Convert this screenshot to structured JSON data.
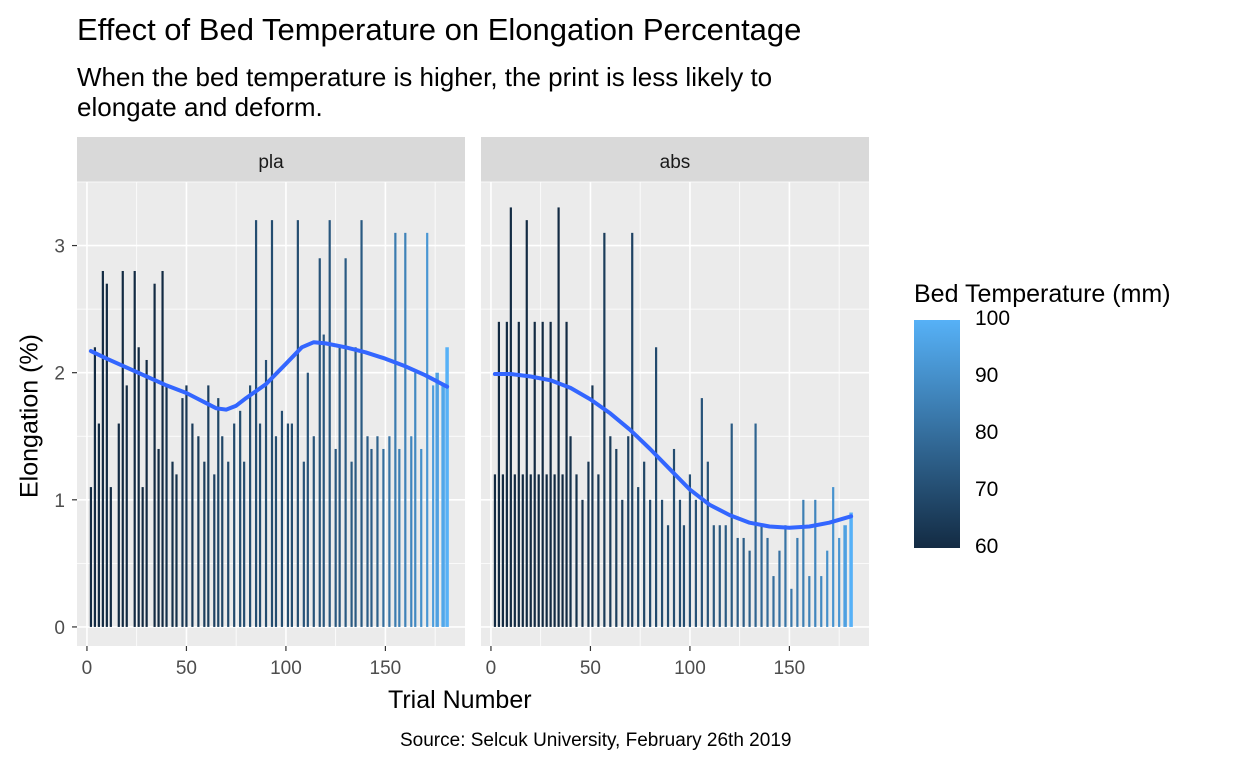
{
  "chart_data": {
    "type": "bar",
    "title": "Effect of Bed Temperature on Elongation Percentage",
    "subtitle": "When the bed temperature is higher, the print is less likely to elongate and deform.",
    "caption": "Source: Selcuk University, February 26th 2019",
    "xlabel": "Trial Number",
    "ylabel": "Elongation (%)",
    "xlim": [
      -5,
      190
    ],
    "ylim": [
      -0.15,
      3.5
    ],
    "x_ticks": [
      "0",
      "50",
      "100",
      "150"
    ],
    "y_ticks": [
      "0",
      "1",
      "2",
      "3"
    ],
    "grid": true,
    "legend": {
      "title": "Bed Temperature (mm)",
      "position": "right",
      "min": 60,
      "max": 100,
      "ticks": [
        "60",
        "70",
        "80",
        "90",
        "100"
      ],
      "color_low": "#132b43",
      "color_high": "#56b1f7"
    },
    "smooth_color": "#3366ff",
    "facets": [
      {
        "label": "pla",
        "bars": [
          {
            "x": 2,
            "y": 1.1,
            "temp": 60
          },
          {
            "x": 4,
            "y": 2.2,
            "temp": 60
          },
          {
            "x": 6,
            "y": 1.6,
            "temp": 60
          },
          {
            "x": 8,
            "y": 2.8,
            "temp": 60
          },
          {
            "x": 10,
            "y": 2.7,
            "temp": 60
          },
          {
            "x": 12,
            "y": 1.1,
            "temp": 60
          },
          {
            "x": 16,
            "y": 1.6,
            "temp": 60
          },
          {
            "x": 18,
            "y": 2.8,
            "temp": 60
          },
          {
            "x": 20,
            "y": 1.9,
            "temp": 60
          },
          {
            "x": 24,
            "y": 2.8,
            "temp": 60
          },
          {
            "x": 26,
            "y": 2.2,
            "temp": 60
          },
          {
            "x": 28,
            "y": 1.1,
            "temp": 60
          },
          {
            "x": 30,
            "y": 2.1,
            "temp": 60
          },
          {
            "x": 34,
            "y": 2.7,
            "temp": 60
          },
          {
            "x": 36,
            "y": 1.4,
            "temp": 60
          },
          {
            "x": 38,
            "y": 2.8,
            "temp": 60
          },
          {
            "x": 40,
            "y": 1.9,
            "temp": 62
          },
          {
            "x": 43,
            "y": 1.3,
            "temp": 62
          },
          {
            "x": 45,
            "y": 1.2,
            "temp": 62
          },
          {
            "x": 48,
            "y": 1.8,
            "temp": 64
          },
          {
            "x": 50,
            "y": 1.9,
            "temp": 64
          },
          {
            "x": 53,
            "y": 1.6,
            "temp": 65
          },
          {
            "x": 56,
            "y": 1.5,
            "temp": 65
          },
          {
            "x": 59,
            "y": 1.3,
            "temp": 66
          },
          {
            "x": 61,
            "y": 1.9,
            "temp": 66
          },
          {
            "x": 64,
            "y": 1.2,
            "temp": 67
          },
          {
            "x": 66,
            "y": 1.8,
            "temp": 68
          },
          {
            "x": 68,
            "y": 1.5,
            "temp": 68
          },
          {
            "x": 71,
            "y": 1.3,
            "temp": 69
          },
          {
            "x": 74,
            "y": 1.6,
            "temp": 69
          },
          {
            "x": 77,
            "y": 1.7,
            "temp": 70
          },
          {
            "x": 79,
            "y": 1.3,
            "temp": 70
          },
          {
            "x": 82,
            "y": 1.9,
            "temp": 70
          },
          {
            "x": 85,
            "y": 3.2,
            "temp": 70
          },
          {
            "x": 87,
            "y": 1.6,
            "temp": 70
          },
          {
            "x": 90,
            "y": 2.1,
            "temp": 70
          },
          {
            "x": 93,
            "y": 3.2,
            "temp": 70
          },
          {
            "x": 95,
            "y": 1.5,
            "temp": 70
          },
          {
            "x": 98,
            "y": 1.7,
            "temp": 70
          },
          {
            "x": 101,
            "y": 1.6,
            "temp": 70
          },
          {
            "x": 103,
            "y": 1.6,
            "temp": 70
          },
          {
            "x": 106,
            "y": 3.2,
            "temp": 70
          },
          {
            "x": 109,
            "y": 1.3,
            "temp": 72
          },
          {
            "x": 111,
            "y": 2.0,
            "temp": 72
          },
          {
            "x": 114,
            "y": 1.5,
            "temp": 72
          },
          {
            "x": 117,
            "y": 2.9,
            "temp": 72
          },
          {
            "x": 119,
            "y": 2.3,
            "temp": 73
          },
          {
            "x": 122,
            "y": 3.2,
            "temp": 73
          },
          {
            "x": 125,
            "y": 1.4,
            "temp": 73
          },
          {
            "x": 127,
            "y": 2.2,
            "temp": 73
          },
          {
            "x": 130,
            "y": 2.9,
            "temp": 74
          },
          {
            "x": 133,
            "y": 1.3,
            "temp": 74
          },
          {
            "x": 135,
            "y": 2.2,
            "temp": 74
          },
          {
            "x": 138,
            "y": 3.2,
            "temp": 74
          },
          {
            "x": 141,
            "y": 1.5,
            "temp": 75
          },
          {
            "x": 143,
            "y": 1.4,
            "temp": 75
          },
          {
            "x": 146,
            "y": 1.5,
            "temp": 76
          },
          {
            "x": 149,
            "y": 1.4,
            "temp": 80
          },
          {
            "x": 152,
            "y": 1.5,
            "temp": 82
          },
          {
            "x": 155,
            "y": 3.1,
            "temp": 84
          },
          {
            "x": 157,
            "y": 1.4,
            "temp": 85
          },
          {
            "x": 160,
            "y": 3.1,
            "temp": 86
          },
          {
            "x": 163,
            "y": 1.5,
            "temp": 87
          },
          {
            "x": 165,
            "y": 2.0,
            "temp": 88
          },
          {
            "x": 168,
            "y": 1.4,
            "temp": 90
          },
          {
            "x": 171,
            "y": 3.1,
            "temp": 92
          },
          {
            "x": 174,
            "y": 1.9,
            "temp": 94
          },
          {
            "x": 176,
            "y": 2.0,
            "temp": 95
          },
          {
            "x": 179,
            "y": 1.9,
            "temp": 97
          },
          {
            "x": 181,
            "y": 2.2,
            "temp": 100
          }
        ],
        "smooth": [
          [
            2,
            2.17
          ],
          [
            10,
            2.11
          ],
          [
            20,
            2.04
          ],
          [
            30,
            1.97
          ],
          [
            40,
            1.9
          ],
          [
            50,
            1.84
          ],
          [
            55,
            1.8
          ],
          [
            60,
            1.76
          ],
          [
            65,
            1.72
          ],
          [
            70,
            1.71
          ],
          [
            75,
            1.74
          ],
          [
            80,
            1.8
          ],
          [
            90,
            1.91
          ],
          [
            100,
            2.07
          ],
          [
            108,
            2.2
          ],
          [
            114,
            2.24
          ],
          [
            120,
            2.23
          ],
          [
            130,
            2.2
          ],
          [
            140,
            2.16
          ],
          [
            150,
            2.11
          ],
          [
            160,
            2.05
          ],
          [
            170,
            1.98
          ],
          [
            181,
            1.89
          ]
        ]
      },
      {
        "label": "abs",
        "bars": [
          {
            "x": 2,
            "y": 1.2,
            "temp": 60
          },
          {
            "x": 4,
            "y": 2.4,
            "temp": 60
          },
          {
            "x": 6,
            "y": 1.2,
            "temp": 60
          },
          {
            "x": 8,
            "y": 2.4,
            "temp": 60
          },
          {
            "x": 10,
            "y": 3.3,
            "temp": 60
          },
          {
            "x": 12,
            "y": 1.2,
            "temp": 60
          },
          {
            "x": 14,
            "y": 2.4,
            "temp": 60
          },
          {
            "x": 16,
            "y": 1.2,
            "temp": 60
          },
          {
            "x": 18,
            "y": 3.2,
            "temp": 60
          },
          {
            "x": 20,
            "y": 1.2,
            "temp": 60
          },
          {
            "x": 22,
            "y": 2.4,
            "temp": 60
          },
          {
            "x": 24,
            "y": 1.2,
            "temp": 60
          },
          {
            "x": 26,
            "y": 2.4,
            "temp": 60
          },
          {
            "x": 28,
            "y": 1.2,
            "temp": 60
          },
          {
            "x": 30,
            "y": 2.4,
            "temp": 60
          },
          {
            "x": 32,
            "y": 1.2,
            "temp": 60
          },
          {
            "x": 34,
            "y": 3.3,
            "temp": 60
          },
          {
            "x": 36,
            "y": 1.2,
            "temp": 60
          },
          {
            "x": 38,
            "y": 2.4,
            "temp": 60
          },
          {
            "x": 40,
            "y": 1.5,
            "temp": 62
          },
          {
            "x": 43,
            "y": 1.2,
            "temp": 62
          },
          {
            "x": 46,
            "y": 1.0,
            "temp": 63
          },
          {
            "x": 49,
            "y": 1.3,
            "temp": 63
          },
          {
            "x": 51,
            "y": 1.9,
            "temp": 64
          },
          {
            "x": 54,
            "y": 1.2,
            "temp": 64
          },
          {
            "x": 57,
            "y": 3.1,
            "temp": 65
          },
          {
            "x": 60,
            "y": 1.5,
            "temp": 65
          },
          {
            "x": 63,
            "y": 1.4,
            "temp": 66
          },
          {
            "x": 66,
            "y": 1.0,
            "temp": 66
          },
          {
            "x": 69,
            "y": 1.5,
            "temp": 67
          },
          {
            "x": 71,
            "y": 3.1,
            "temp": 67
          },
          {
            "x": 74,
            "y": 1.1,
            "temp": 68
          },
          {
            "x": 77,
            "y": 1.3,
            "temp": 68
          },
          {
            "x": 80,
            "y": 1.0,
            "temp": 69
          },
          {
            "x": 83,
            "y": 2.2,
            "temp": 69
          },
          {
            "x": 86,
            "y": 1.0,
            "temp": 70
          },
          {
            "x": 89,
            "y": 0.8,
            "temp": 70
          },
          {
            "x": 92,
            "y": 1.4,
            "temp": 70
          },
          {
            "x": 95,
            "y": 1.0,
            "temp": 70
          },
          {
            "x": 97,
            "y": 0.8,
            "temp": 70
          },
          {
            "x": 100,
            "y": 1.2,
            "temp": 71
          },
          {
            "x": 103,
            "y": 1.0,
            "temp": 71
          },
          {
            "x": 106,
            "y": 1.8,
            "temp": 72
          },
          {
            "x": 109,
            "y": 1.3,
            "temp": 72
          },
          {
            "x": 112,
            "y": 0.8,
            "temp": 73
          },
          {
            "x": 115,
            "y": 0.8,
            "temp": 73
          },
          {
            "x": 118,
            "y": 0.8,
            "temp": 74
          },
          {
            "x": 121,
            "y": 1.6,
            "temp": 74
          },
          {
            "x": 124,
            "y": 0.7,
            "temp": 75
          },
          {
            "x": 127,
            "y": 0.7,
            "temp": 75
          },
          {
            "x": 130,
            "y": 0.6,
            "temp": 76
          },
          {
            "x": 133,
            "y": 1.6,
            "temp": 77
          },
          {
            "x": 136,
            "y": 0.8,
            "temp": 78
          },
          {
            "x": 139,
            "y": 0.7,
            "temp": 79
          },
          {
            "x": 142,
            "y": 0.4,
            "temp": 80
          },
          {
            "x": 145,
            "y": 0.6,
            "temp": 81
          },
          {
            "x": 148,
            "y": 0.8,
            "temp": 82
          },
          {
            "x": 151,
            "y": 0.3,
            "temp": 83
          },
          {
            "x": 154,
            "y": 0.7,
            "temp": 84
          },
          {
            "x": 157,
            "y": 1.0,
            "temp": 85
          },
          {
            "x": 160,
            "y": 0.4,
            "temp": 86
          },
          {
            "x": 163,
            "y": 1.0,
            "temp": 87
          },
          {
            "x": 166,
            "y": 0.4,
            "temp": 88
          },
          {
            "x": 169,
            "y": 0.6,
            "temp": 90
          },
          {
            "x": 172,
            "y": 1.1,
            "temp": 91
          },
          {
            "x": 175,
            "y": 0.7,
            "temp": 92
          },
          {
            "x": 178,
            "y": 0.8,
            "temp": 95
          },
          {
            "x": 181,
            "y": 0.9,
            "temp": 100
          }
        ],
        "smooth": [
          [
            2,
            1.99
          ],
          [
            10,
            1.99
          ],
          [
            20,
            1.97
          ],
          [
            30,
            1.94
          ],
          [
            40,
            1.88
          ],
          [
            50,
            1.79
          ],
          [
            60,
            1.68
          ],
          [
            70,
            1.55
          ],
          [
            80,
            1.4
          ],
          [
            90,
            1.24
          ],
          [
            100,
            1.08
          ],
          [
            110,
            0.96
          ],
          [
            120,
            0.88
          ],
          [
            130,
            0.82
          ],
          [
            140,
            0.79
          ],
          [
            150,
            0.78
          ],
          [
            160,
            0.79
          ],
          [
            170,
            0.82
          ],
          [
            181,
            0.87
          ]
        ]
      }
    ]
  }
}
